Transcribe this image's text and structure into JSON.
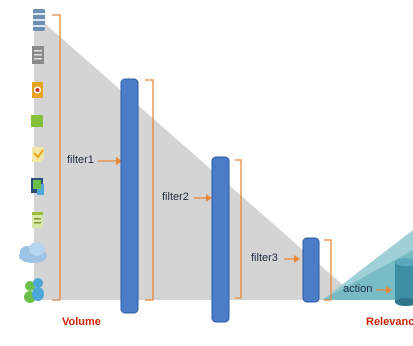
{
  "diagram": {
    "filters": [
      {
        "label": "filter1"
      },
      {
        "label": "filter2"
      },
      {
        "label": "filter3"
      }
    ],
    "action_label": "action",
    "left_label": "Volume",
    "right_label": "Relevanc",
    "source_icons": [
      "database-icon",
      "document-icon",
      "badge-icon",
      "green-square-icon",
      "message-icon",
      "device-icon",
      "notepad-icon",
      "cloud-icon",
      "people-icon"
    ],
    "colors": {
      "funnel": "#cfcfcf",
      "filter_bar": "#4a7cc7",
      "filter_bar_border": "#2d5aa3",
      "bracket": "#e8883a",
      "arrow": "#e8883a",
      "action_zone": "#8ec8d0",
      "output": "#3e8fa6",
      "left_label_color": "#cc2200",
      "right_label_color": "#cc2200"
    }
  }
}
